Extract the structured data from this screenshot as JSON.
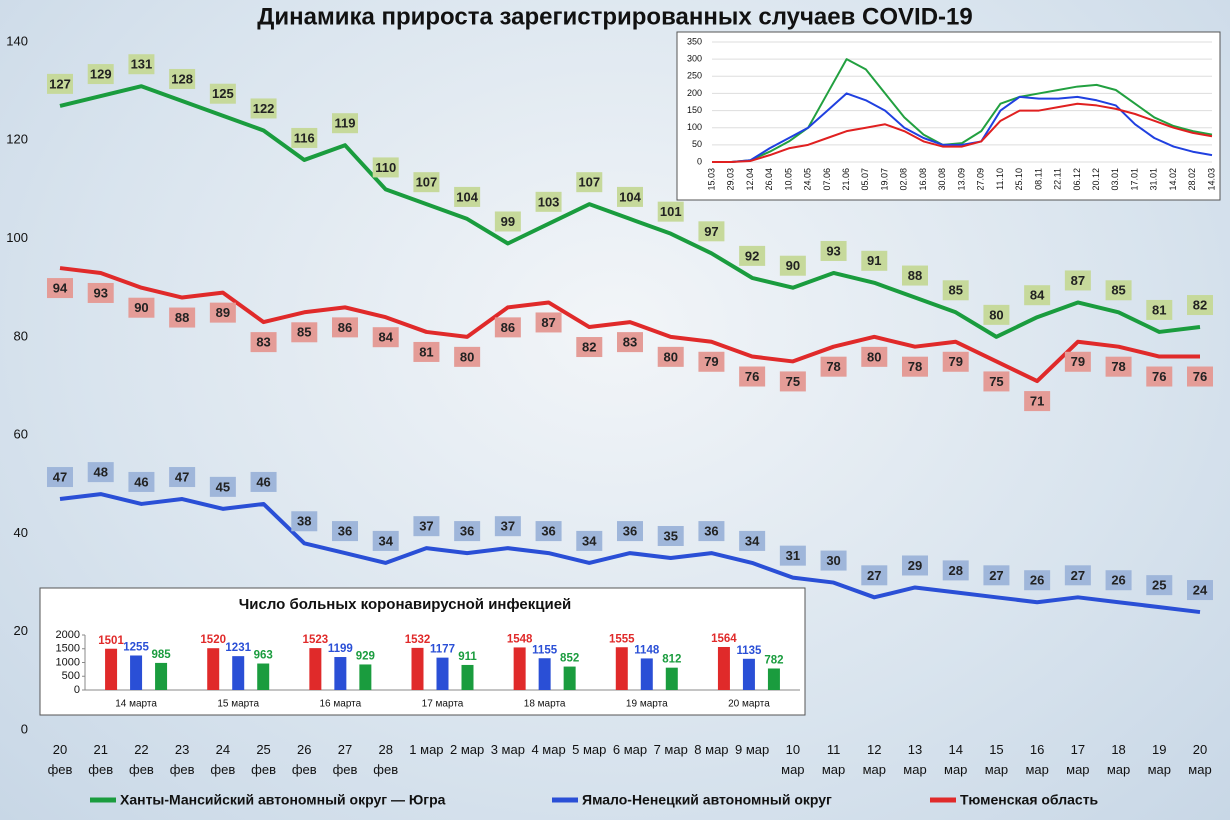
{
  "chart_data": [
    {
      "type": "line",
      "title": "Динамика прироста зарегистрированных случаев COVID-19",
      "categories": [
        "20\nфев",
        "21\nфев",
        "22\nфев",
        "23\nфев",
        "24\nфев",
        "25\nфев",
        "26\nфев",
        "27\nфев",
        "28\nфев",
        "1 мар",
        "2 мар",
        "3 мар",
        "4 мар",
        "5 мар",
        "6 мар",
        "7 мар",
        "8 мар",
        "9 мар",
        "10\nмар",
        "11\nмар",
        "12\nмар",
        "13\nмар",
        "14\nмар",
        "15\nмар",
        "16\nмар",
        "17\nмар",
        "18\nмар",
        "19\nмар",
        "20\nмар"
      ],
      "series": [
        {
          "name": "Ханты-Мансийский автономный округ — Югра",
          "color": "#1a9c3e",
          "label_color": "#c6d99b",
          "values": [
            127,
            129,
            131,
            128,
            125,
            122,
            116,
            119,
            110,
            107,
            104,
            99,
            103,
            107,
            104,
            101,
            97,
            92,
            90,
            93,
            91,
            88,
            85,
            80,
            84,
            87,
            85,
            81,
            82
          ]
        },
        {
          "name": "Ямало-Ненецкий автономный округ",
          "color": "#2a4fd6",
          "label_color": "#9fb6da",
          "values": [
            47,
            48,
            46,
            47,
            45,
            46,
            38,
            36,
            34,
            37,
            36,
            37,
            36,
            34,
            36,
            35,
            36,
            34,
            31,
            30,
            27,
            29,
            28,
            27,
            26,
            27,
            26,
            25,
            24
          ]
        },
        {
          "name": "Тюменская область",
          "color": "#e02a2a",
          "label_color": "#e49c97",
          "values": [
            94,
            93,
            90,
            88,
            89,
            83,
            85,
            86,
            84,
            81,
            80,
            86,
            87,
            82,
            83,
            80,
            79,
            76,
            75,
            78,
            80,
            78,
            79,
            75,
            71,
            79,
            78,
            76,
            76
          ]
        }
      ],
      "ylim": [
        0,
        140
      ],
      "yticks": [
        0,
        20,
        40,
        60,
        80,
        100,
        120,
        140
      ],
      "data_labels": true,
      "legend": "bottom",
      "grid": false
    },
    {
      "type": "line",
      "categories": [
        "15.03",
        "29.03",
        "12.04",
        "26.04",
        "10.05",
        "24.05",
        "07.06",
        "21.06",
        "05.07",
        "19.07",
        "02.08",
        "16.08",
        "30.08",
        "13.09",
        "27.09",
        "11.10",
        "25.10",
        "08.11",
        "22.11",
        "06.12",
        "20.12",
        "03.01",
        "17.01",
        "31.01",
        "14.02",
        "28.02",
        "14.03"
      ],
      "series": [
        {
          "color": "#22a040",
          "values": [
            0,
            0,
            5,
            30,
            60,
            100,
            200,
            300,
            270,
            200,
            130,
            80,
            50,
            55,
            90,
            170,
            190,
            200,
            210,
            220,
            225,
            210,
            170,
            130,
            105,
            90,
            80
          ]
        },
        {
          "color": "#2040e0",
          "values": [
            0,
            0,
            5,
            40,
            70,
            100,
            150,
            200,
            180,
            150,
            100,
            70,
            50,
            50,
            60,
            150,
            190,
            185,
            185,
            190,
            180,
            165,
            110,
            70,
            45,
            30,
            20
          ]
        },
        {
          "color": "#e02020",
          "values": [
            0,
            0,
            3,
            20,
            40,
            50,
            70,
            90,
            100,
            110,
            90,
            60,
            45,
            45,
            60,
            120,
            150,
            150,
            160,
            170,
            165,
            155,
            140,
            120,
            100,
            85,
            75
          ]
        }
      ],
      "ylim": [
        0,
        350
      ],
      "yticks": [
        0,
        50,
        100,
        150,
        200,
        250,
        300,
        350
      ],
      "grid": true,
      "x_label_rotation": 90
    },
    {
      "type": "bar",
      "title": "Число больных коронавирусной инфекцией",
      "categories": [
        "14 марта",
        "15 марта",
        "16 марта",
        "17 марта",
        "18 марта",
        "19 марта",
        "20 марта"
      ],
      "series": [
        {
          "color": "#e02a2a",
          "values": [
            1501,
            1520,
            1523,
            1532,
            1548,
            1555,
            1564
          ]
        },
        {
          "color": "#2a4fd6",
          "values": [
            1255,
            1231,
            1199,
            1177,
            1155,
            1148,
            1135
          ]
        },
        {
          "color": "#1a9c3e",
          "values": [
            985,
            963,
            929,
            911,
            852,
            812,
            782
          ]
        }
      ],
      "ylim": [
        0,
        2000
      ],
      "yticks": [
        0,
        500,
        1000,
        1500,
        2000
      ],
      "data_labels": true
    }
  ]
}
